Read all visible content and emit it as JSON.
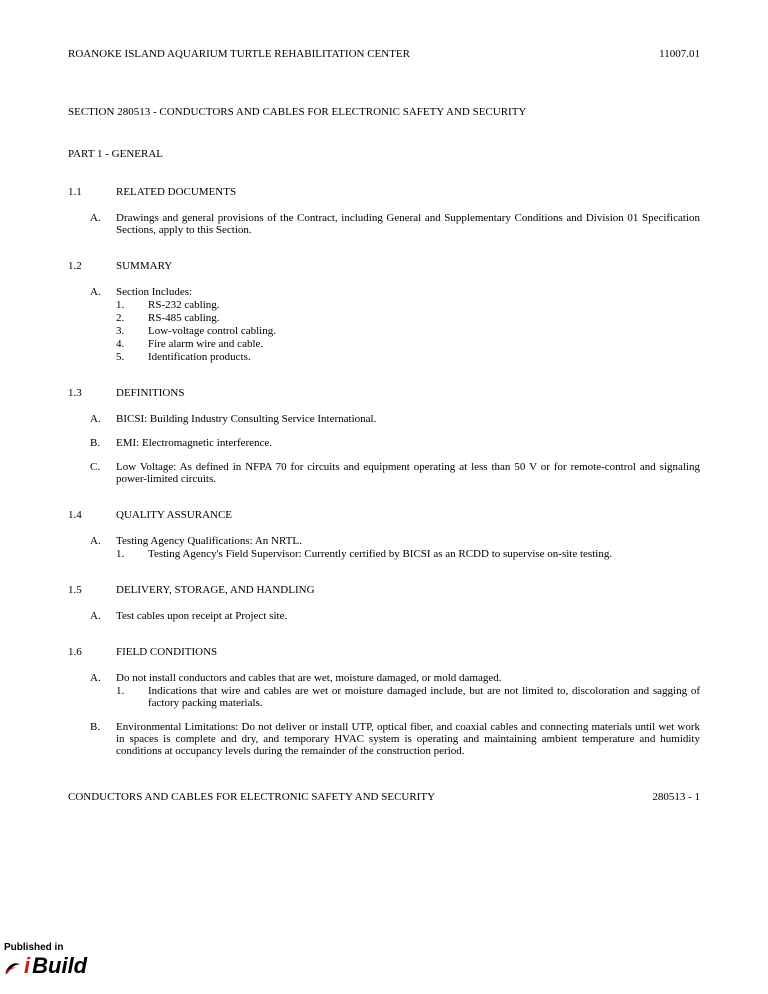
{
  "header": {
    "title": "ROANOKE ISLAND AQUARIUM TURTLE REHABILITATION CENTER",
    "number": "11007.01"
  },
  "section_title": "SECTION 280513 - CONDUCTORS AND CABLES FOR ELECTRONIC SAFETY AND SECURITY",
  "part_title": "PART 1 - GENERAL",
  "articles": [
    {
      "num": "1.1",
      "label": "RELATED DOCUMENTS",
      "paras": [
        {
          "letter": "A.",
          "text": "Drawings and general provisions of the Contract, including General and Supplementary Conditions and Division 01 Specification Sections, apply to this Section.",
          "subs": []
        }
      ]
    },
    {
      "num": "1.2",
      "label": "SUMMARY",
      "paras": [
        {
          "letter": "A.",
          "text": "Section Includes:",
          "subs": [
            {
              "n": "1.",
              "t": "RS-232 cabling."
            },
            {
              "n": "2.",
              "t": "RS-485 cabling."
            },
            {
              "n": "3.",
              "t": "Low-voltage control cabling."
            },
            {
              "n": "4.",
              "t": "Fire alarm wire and cable."
            },
            {
              "n": "5.",
              "t": "Identification products."
            }
          ]
        }
      ]
    },
    {
      "num": "1.3",
      "label": "DEFINITIONS",
      "paras": [
        {
          "letter": "A.",
          "text": "BICSI:  Building Industry Consulting Service International.",
          "subs": []
        },
        {
          "letter": "B.",
          "text": "EMI:  Electromagnetic interference.",
          "subs": []
        },
        {
          "letter": "C.",
          "text": "Low Voltage:  As defined in NFPA 70 for circuits and equipment operating at less than 50 V or for remote-control and signaling power-limited circuits.",
          "subs": []
        }
      ]
    },
    {
      "num": "1.4",
      "label": "QUALITY ASSURANCE",
      "paras": [
        {
          "letter": "A.",
          "text": "Testing Agency Qualifications:  An NRTL.",
          "subs": [
            {
              "n": "1.",
              "t": "Testing Agency's Field Supervisor:  Currently certified by BICSI as an RCDD to supervise on-site testing."
            }
          ]
        }
      ]
    },
    {
      "num": "1.5",
      "label": "DELIVERY, STORAGE, AND HANDLING",
      "paras": [
        {
          "letter": "A.",
          "text": "Test cables upon receipt at Project site.",
          "subs": []
        }
      ]
    },
    {
      "num": "1.6",
      "label": "FIELD CONDITIONS",
      "paras": [
        {
          "letter": "A.",
          "text": "Do not install conductors and cables that are wet, moisture damaged, or mold damaged.",
          "subs": [
            {
              "n": "1.",
              "t": "Indications that wire and cables are wet or moisture damaged include, but are not limited to, discoloration and sagging of factory packing materials."
            }
          ]
        },
        {
          "letter": "B.",
          "text": "Environmental Limitations:  Do not deliver or install UTP, optical fiber, and coaxial cables and connecting materials until wet work in spaces is complete and dry, and temporary HVAC system is operating and maintaining ambient temperature and humidity conditions at occupancy levels during the remainder of the construction period.",
          "subs": []
        }
      ]
    }
  ],
  "footer": {
    "title": "CONDUCTORS AND CABLES FOR ELECTRONIC SAFETY AND SECURITY",
    "page": "280513 - 1"
  },
  "logo": {
    "published": "Published in",
    "i": "i",
    "build": "Build"
  }
}
